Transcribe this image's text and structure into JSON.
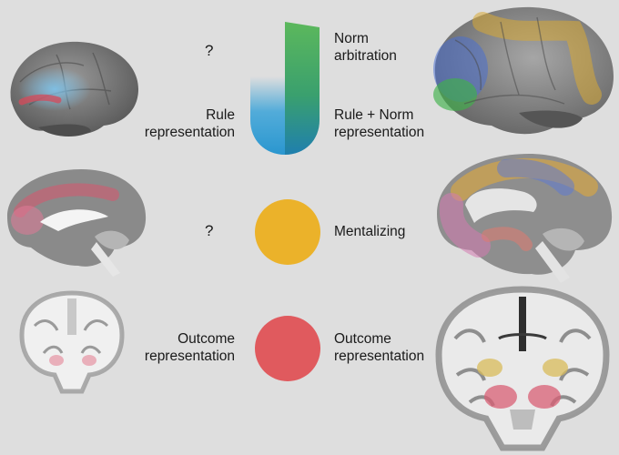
{
  "rows": [
    {
      "left_top_label": "?",
      "left_bottom_label": "Rule\nrepresentation",
      "right_top_label": "Norm\narbitration",
      "right_bottom_label": "Rule + Norm\nrepresentation",
      "colors": [
        "#5caf5e",
        "#2f9fd8",
        "#1a6fae"
      ]
    },
    {
      "left_label": "?",
      "right_label": "Mentalizing",
      "color": "#ebb22a"
    },
    {
      "left_label": "Outcome\nrepresentation",
      "right_label": "Outcome\nrepresentation",
      "color": "#e05a5e"
    }
  ]
}
